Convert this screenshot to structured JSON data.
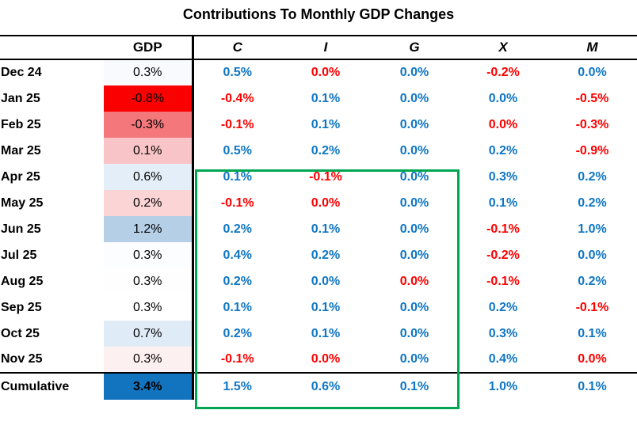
{
  "title": "Contributions To Monthly GDP Changes",
  "colors": {
    "positive_text": "#0E76C4",
    "negative_text": "#FE0000",
    "annotation_green": "#00A551",
    "gdp_max_fill": "#1273BF",
    "gdp_min_fill": "#FA0000"
  },
  "table": {
    "header": {
      "gdp": "GDP",
      "components": [
        "C",
        "I",
        "G",
        "X",
        "M"
      ]
    },
    "rows": [
      {
        "label": "Dec 24",
        "gdp": "0.3%",
        "gdp_bg": "#F8FAFD",
        "c": {
          "v": "0.5%",
          "t": "pos"
        },
        "i": {
          "v": "0.0%",
          "t": "neg"
        },
        "g": {
          "v": "0.0%",
          "t": "pos"
        },
        "x": {
          "v": "-0.2%",
          "t": "neg"
        },
        "m": {
          "v": "0.0%",
          "t": "pos"
        }
      },
      {
        "label": "Jan 25",
        "gdp": "-0.8%",
        "gdp_bg": "#FA0000",
        "c": {
          "v": "-0.4%",
          "t": "neg"
        },
        "i": {
          "v": "0.1%",
          "t": "pos"
        },
        "g": {
          "v": "0.0%",
          "t": "pos"
        },
        "x": {
          "v": "0.0%",
          "t": "pos"
        },
        "m": {
          "v": "-0.5%",
          "t": "neg"
        }
      },
      {
        "label": "Feb 25",
        "gdp": "-0.3%",
        "gdp_bg": "#F4777B",
        "c": {
          "v": "-0.1%",
          "t": "neg"
        },
        "i": {
          "v": "0.1%",
          "t": "pos"
        },
        "g": {
          "v": "0.0%",
          "t": "pos"
        },
        "x": {
          "v": "0.0%",
          "t": "neg"
        },
        "m": {
          "v": "-0.3%",
          "t": "neg"
        }
      },
      {
        "label": "Mar 25",
        "gdp": "0.1%",
        "gdp_bg": "#F9C4C7",
        "c": {
          "v": "0.5%",
          "t": "pos"
        },
        "i": {
          "v": "0.2%",
          "t": "pos"
        },
        "g": {
          "v": "0.0%",
          "t": "pos"
        },
        "x": {
          "v": "0.2%",
          "t": "pos"
        },
        "m": {
          "v": "-0.9%",
          "t": "neg"
        }
      },
      {
        "label": "Apr 25",
        "gdp": "0.6%",
        "gdp_bg": "#E3EEF8",
        "c": {
          "v": "0.1%",
          "t": "pos"
        },
        "i": {
          "v": "-0.1%",
          "t": "neg"
        },
        "g": {
          "v": "0.0%",
          "t": "pos"
        },
        "x": {
          "v": "0.3%",
          "t": "pos"
        },
        "m": {
          "v": "0.2%",
          "t": "pos"
        }
      },
      {
        "label": "May 25",
        "gdp": "0.2%",
        "gdp_bg": "#FBD4D6",
        "c": {
          "v": "-0.1%",
          "t": "neg"
        },
        "i": {
          "v": "0.0%",
          "t": "neg"
        },
        "g": {
          "v": "0.0%",
          "t": "pos"
        },
        "x": {
          "v": "0.1%",
          "t": "pos"
        },
        "m": {
          "v": "0.2%",
          "t": "pos"
        }
      },
      {
        "label": "Jun 25",
        "gdp": "1.2%",
        "gdp_bg": "#B5CFE7",
        "c": {
          "v": "0.2%",
          "t": "pos"
        },
        "i": {
          "v": "0.1%",
          "t": "pos"
        },
        "g": {
          "v": "0.0%",
          "t": "pos"
        },
        "x": {
          "v": "-0.1%",
          "t": "neg"
        },
        "m": {
          "v": "1.0%",
          "t": "pos"
        }
      },
      {
        "label": "Jul 25",
        "gdp": "0.3%",
        "gdp_bg": "#FCFDFE",
        "c": {
          "v": "0.4%",
          "t": "pos"
        },
        "i": {
          "v": "0.2%",
          "t": "pos"
        },
        "g": {
          "v": "0.0%",
          "t": "pos"
        },
        "x": {
          "v": "-0.2%",
          "t": "neg"
        },
        "m": {
          "v": "0.0%",
          "t": "pos"
        }
      },
      {
        "label": "Aug 25",
        "gdp": "0.3%",
        "gdp_bg": "#FEFEFF",
        "c": {
          "v": "0.2%",
          "t": "pos"
        },
        "i": {
          "v": "0.0%",
          "t": "pos"
        },
        "g": {
          "v": "0.0%",
          "t": "neg"
        },
        "x": {
          "v": "-0.1%",
          "t": "neg"
        },
        "m": {
          "v": "0.2%",
          "t": "pos"
        }
      },
      {
        "label": "Sep 25",
        "gdp": "0.3%",
        "gdp_bg": "#FFFFFF",
        "c": {
          "v": "0.1%",
          "t": "pos"
        },
        "i": {
          "v": "0.1%",
          "t": "pos"
        },
        "g": {
          "v": "0.0%",
          "t": "pos"
        },
        "x": {
          "v": "0.2%",
          "t": "pos"
        },
        "m": {
          "v": "-0.1%",
          "t": "neg"
        }
      },
      {
        "label": "Oct 25",
        "gdp": "0.7%",
        "gdp_bg": "#DFEBF6",
        "c": {
          "v": "0.2%",
          "t": "pos"
        },
        "i": {
          "v": "0.1%",
          "t": "pos"
        },
        "g": {
          "v": "0.0%",
          "t": "pos"
        },
        "x": {
          "v": "0.3%",
          "t": "pos"
        },
        "m": {
          "v": "0.1%",
          "t": "pos"
        }
      },
      {
        "label": "Nov 25",
        "gdp": "0.3%",
        "gdp_bg": "#FDF0F1",
        "c": {
          "v": "-0.1%",
          "t": "neg"
        },
        "i": {
          "v": "0.0%",
          "t": "neg"
        },
        "g": {
          "v": "0.0%",
          "t": "pos"
        },
        "x": {
          "v": "0.4%",
          "t": "pos"
        },
        "m": {
          "v": "0.0%",
          "t": "neg"
        }
      },
      {
        "label": "Cumulative",
        "gdp": "3.4%",
        "gdp_bg": "#1273BF",
        "c": {
          "v": "1.5%",
          "t": "pos"
        },
        "i": {
          "v": "0.6%",
          "t": "pos"
        },
        "g": {
          "v": "0.1%",
          "t": "pos"
        },
        "x": {
          "v": "1.0%",
          "t": "pos"
        },
        "m": {
          "v": "0.1%",
          "t": "pos"
        }
      }
    ]
  },
  "annotation": {
    "shape": "green-rectangle",
    "covers": "columns C, I, G from Apr 25 through Cumulative"
  },
  "chart_data": {
    "type": "table",
    "title": "Contributions To Monthly GDP Changes",
    "categories": [
      "Dec 24",
      "Jan 25",
      "Feb 25",
      "Mar 25",
      "Apr 25",
      "May 25",
      "Jun 25",
      "Jul 25",
      "Aug 25",
      "Sep 25",
      "Oct 25",
      "Nov 25",
      "Cumulative"
    ],
    "series": [
      {
        "name": "GDP",
        "values": [
          0.3,
          -0.8,
          -0.3,
          0.1,
          0.6,
          0.2,
          1.2,
          0.3,
          0.3,
          0.3,
          0.7,
          0.3,
          3.4
        ]
      },
      {
        "name": "C",
        "values": [
          0.5,
          -0.4,
          -0.1,
          0.5,
          0.1,
          -0.1,
          0.2,
          0.4,
          0.2,
          0.1,
          0.2,
          -0.1,
          1.5
        ]
      },
      {
        "name": "I",
        "values": [
          0.0,
          0.1,
          0.1,
          0.2,
          -0.1,
          0.0,
          0.1,
          0.2,
          0.0,
          0.1,
          0.1,
          0.0,
          0.6
        ]
      },
      {
        "name": "G",
        "values": [
          0.0,
          0.0,
          0.0,
          0.0,
          0.0,
          0.0,
          0.0,
          0.0,
          0.0,
          0.0,
          0.0,
          0.0,
          0.1
        ]
      },
      {
        "name": "X",
        "values": [
          -0.2,
          0.0,
          0.0,
          0.2,
          0.3,
          0.1,
          -0.1,
          -0.2,
          -0.1,
          0.2,
          0.3,
          0.4,
          1.0
        ]
      },
      {
        "name": "M",
        "values": [
          0.0,
          -0.5,
          -0.3,
          -0.9,
          0.2,
          0.2,
          1.0,
          0.0,
          0.2,
          -0.1,
          0.1,
          0.0,
          0.1
        ]
      }
    ],
    "units": "percent",
    "notes": "GDP column uses a red-white-blue heat fill; positive contributions shown in blue text, negative in red; green box highlights C, I, G for Apr 25 through Cumulative"
  }
}
